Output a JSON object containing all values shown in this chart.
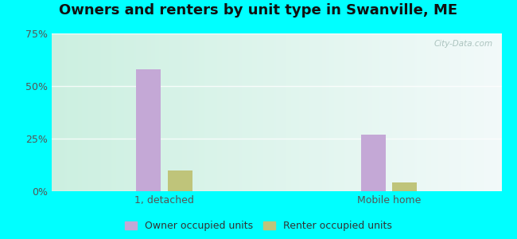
{
  "title": "Owners and renters by unit type in Swanville, ME",
  "categories": [
    "1, detached",
    "Mobile home"
  ],
  "owner_values": [
    58,
    27
  ],
  "renter_values": [
    10,
    4
  ],
  "owner_color": "#c4a8d6",
  "renter_color": "#bfc47a",
  "bar_width": 0.22,
  "ylim": [
    0,
    75
  ],
  "yticks": [
    0,
    25,
    50,
    75
  ],
  "yticklabels": [
    "0%",
    "25%",
    "50%",
    "75%"
  ],
  "title_fontsize": 13,
  "tick_fontsize": 9,
  "legend_fontsize": 9,
  "watermark": "City-Data.com",
  "figure_bg": "#00ffff",
  "plot_bg_left": "#c8ede0",
  "plot_bg_right": "#f0faf6",
  "plot_bg_center": "#eaf8f0"
}
